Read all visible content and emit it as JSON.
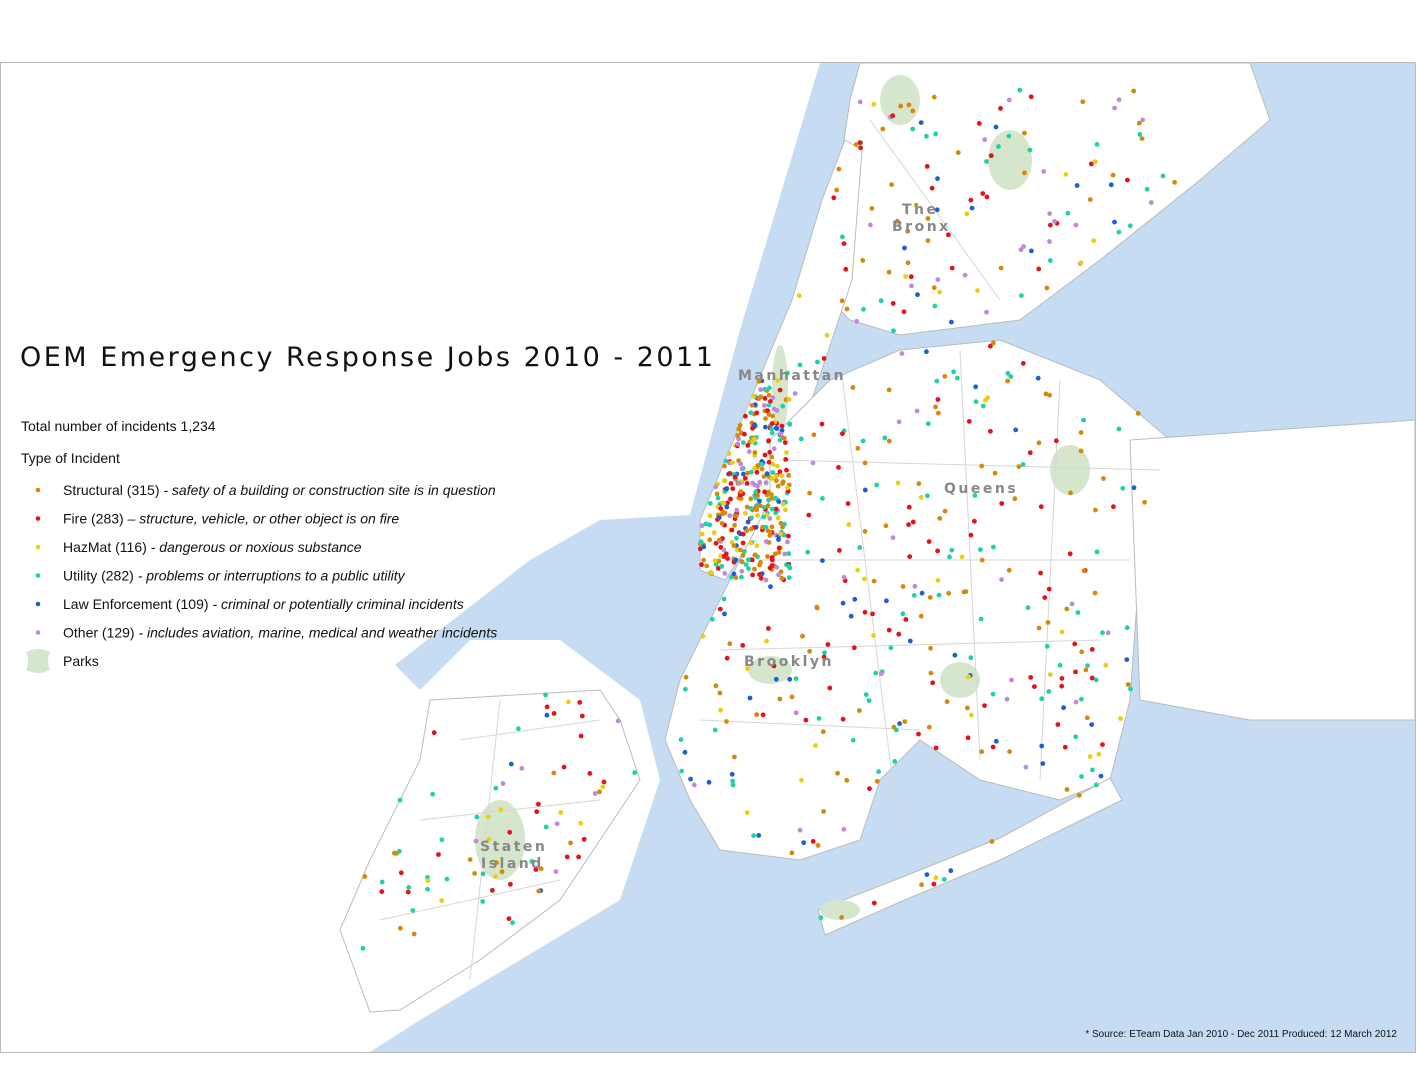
{
  "header": {
    "title": "OEM Emergency Response Jobs 2010 - 2011"
  },
  "summary": {
    "total": "Total number of incidents 1,234",
    "type_heading": "Type of Incident"
  },
  "legend": {
    "items": [
      {
        "name": "Structural (315)",
        "description": "- safety of a building or construction site is in question",
        "color": "#d4890a"
      },
      {
        "name": "Fire (283)",
        "description": "– structure, vehicle, or other object is on fire",
        "color": "#e3121b"
      },
      {
        "name": "HazMat (116)",
        "description": "- dangerous or noxious substance",
        "color": "#e8cf12"
      },
      {
        "name": "Utility (282)",
        "description": "- problems or interruptions to a public utility",
        "color": "#1fd1a6"
      },
      {
        "name": "Law Enforcement (109)",
        "description": "- criminal or potentially criminal incidents",
        "color": "#1a5fd6"
      },
      {
        "name": "Other (129)",
        "description": "- includes aviation, marine, medical and weather incidents",
        "color": "#c08ad8"
      }
    ],
    "parks": "Parks"
  },
  "boroughs": [
    "The",
    "Bronx",
    "Manhattan",
    "Queens",
    "Brooklyn",
    "Staten",
    "Island"
  ],
  "footer": {
    "source": "* Source: ETeam Data Jan 2010 - Dec 2011   Produced: 12 March 2012"
  }
}
